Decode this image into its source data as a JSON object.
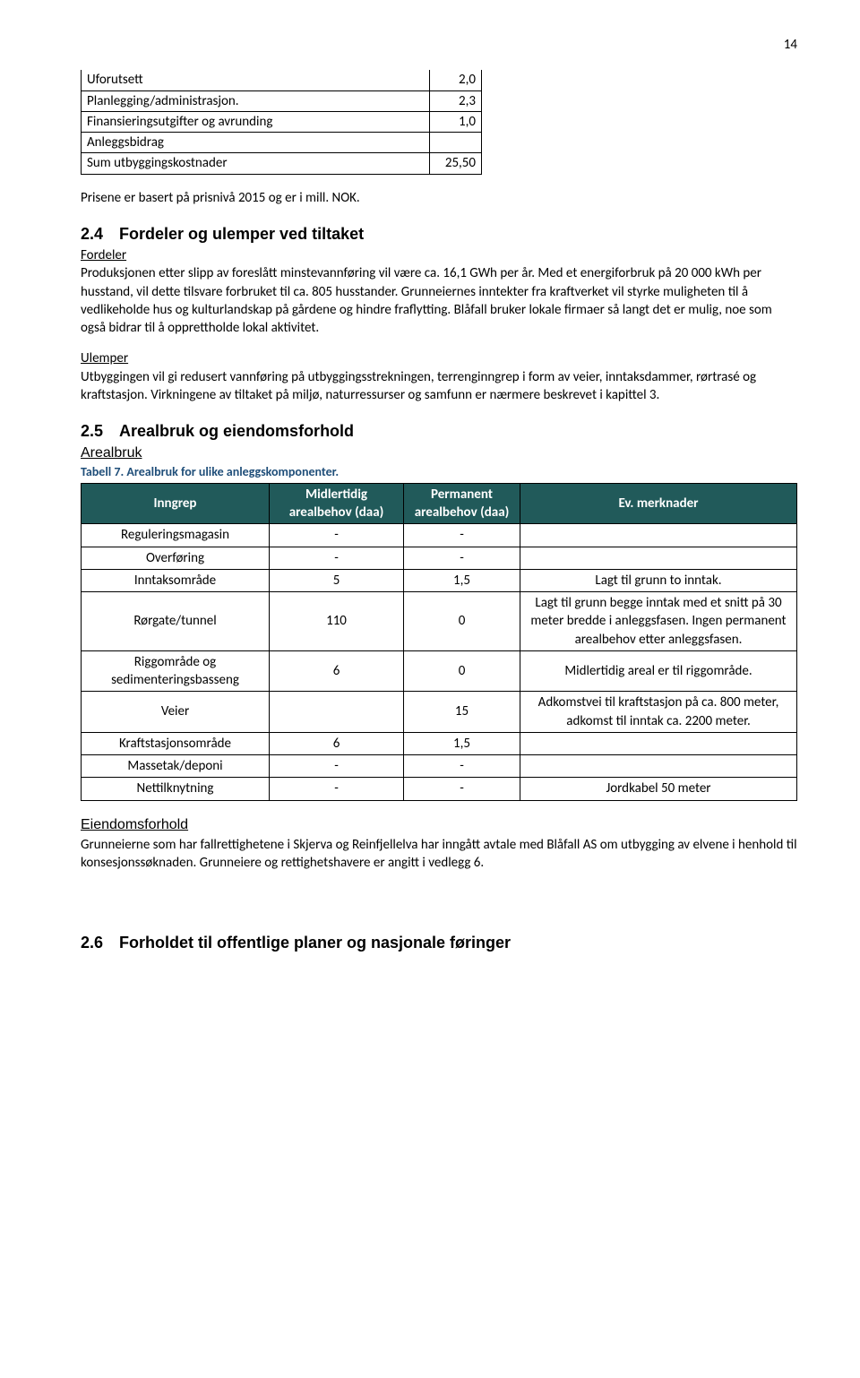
{
  "page_number": "14",
  "cost_table": {
    "rows": [
      {
        "label": "Uforutsett",
        "value": "2,0"
      },
      {
        "label": "Planlegging/administrasjon.",
        "value": "2,3"
      },
      {
        "label": "Finansieringsutgifter og avrunding",
        "value": "1,0"
      },
      {
        "label": "Anleggsbidrag",
        "value": ""
      },
      {
        "label": "Sum utbyggingskostnader",
        "value": "25,50"
      }
    ]
  },
  "price_note": "Prisene er basert på prisnivå 2015 og er i mill. NOK.",
  "section_24": {
    "heading": "2.4 Fordeler og ulemper ved tiltaket",
    "fordeler_label": "Fordeler",
    "fordeler_text": "Produksjonen etter slipp av foreslått minstevannføring vil være ca. 16,1 GWh per år. Med et energiforbruk på 20 000 kWh per husstand, vil dette tilsvare forbruket til ca. 805 husstander. Grunneiernes inntekter fra kraftverket vil styrke muligheten til å vedlikeholde hus og kulturlandskap på gårdene og hindre fraflytting. Blåfall bruker lokale firmaer så langt det er mulig, noe som også bidrar til å opprettholde lokal aktivitet.",
    "ulemper_label": "Ulemper",
    "ulemper_text": "Utbyggingen vil gi redusert vannføring på utbyggingsstrekningen, terrenginngrep i form av veier, inntaksdammer, rørtrasé og kraftstasjon. Virkningene av tiltaket på miljø, naturressurser og samfunn er nærmere beskrevet i kapittel 3."
  },
  "section_25": {
    "heading": "2.5 Arealbruk og eiendomsforhold",
    "sub": "Arealbruk",
    "caption": "Tabell 7. Arealbruk for ulike anleggskomponenter.",
    "caption_color": "#1f4e79",
    "header_bg": "#215a5a",
    "columns": [
      "Inngrep",
      "Midlertidig arealbehov (daa)",
      "Permanent arealbehov (daa)",
      "Ev. merknader"
    ],
    "rows": [
      {
        "c0": "Reguleringsmagasin",
        "c1": "-",
        "c2": "-",
        "c3": ""
      },
      {
        "c0": "Overføring",
        "c1": "-",
        "c2": "-",
        "c3": ""
      },
      {
        "c0": "Inntaksområde",
        "c1": "5",
        "c2": "1,5",
        "c3": "Lagt til grunn to inntak."
      },
      {
        "c0": "Rørgate/tunnel",
        "c1": "110",
        "c2": "0",
        "c3": "Lagt til grunn begge inntak med et snitt på 30 meter bredde i anleggsfasen. Ingen permanent arealbehov etter anleggsfasen."
      },
      {
        "c0": "Riggområde og sedimenteringsbasseng",
        "c1": "6",
        "c2": "0",
        "c3": "Midlertidig areal er til riggområde."
      },
      {
        "c0": "Veier",
        "c1": "",
        "c2": "15",
        "c3": "Adkomstvei til kraftstasjon på ca. 800 meter, adkomst til inntak ca. 2200 meter."
      },
      {
        "c0": "Kraftstasjonsområde",
        "c1": "6",
        "c2": "1,5",
        "c3": ""
      },
      {
        "c0": "Massetak/deponi",
        "c1": "-",
        "c2": "-",
        "c3": ""
      },
      {
        "c0": "Nettilknytning",
        "c1": "-",
        "c2": "-",
        "c3": "Jordkabel 50 meter"
      }
    ],
    "eiendom_h": "Eiendomsforhold",
    "eiendom_text": "Grunneierne som har fallrettighetene i Skjerva og Reinfjellelva har inngått avtale med Blåfall AS om utbygging av elvene i henhold til konsesjonssøknaden. Grunneiere og rettighetshavere er angitt i vedlegg 6."
  },
  "section_26_heading": "2.6 Forholdet til offentlige planer og nasjonale føringer"
}
